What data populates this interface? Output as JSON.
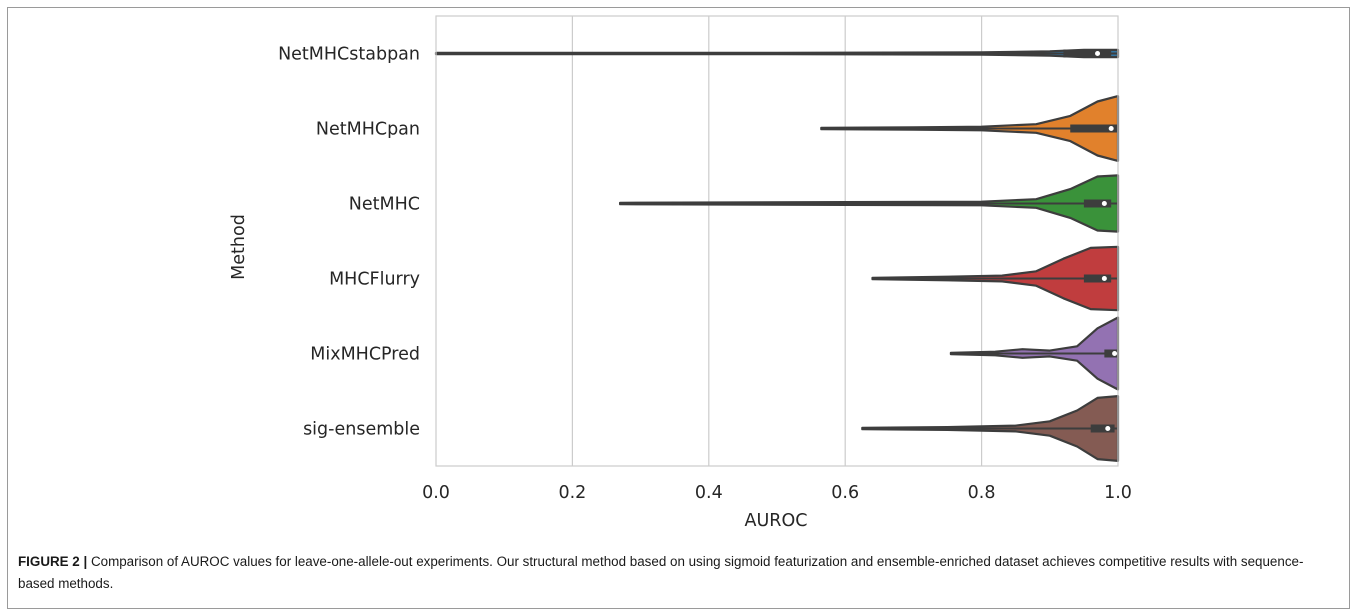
{
  "figure": {
    "caption_label": "FIGURE 2 |",
    "caption_text": " Comparison of AUROC values for leave-one-allele-out experiments. Our structural method based on using sigmoid featurization and ensemble-enriched dataset achieves competitive results with sequence-based methods."
  },
  "chart_data": {
    "type": "violin",
    "orientation": "horizontal",
    "xlabel": "AUROC",
    "ylabel": "Method",
    "xlim": [
      0.0,
      1.0
    ],
    "xticks": [
      "0.0",
      "0.2",
      "0.4",
      "0.6",
      "0.8",
      "1.0"
    ],
    "grid": "vertical",
    "series": [
      {
        "name": "NetMHCstabpan",
        "color": "#3274a1",
        "min": 0.0,
        "q1": 0.92,
        "median": 0.97,
        "q3": 0.99,
        "max": 1.0,
        "density": [
          [
            0.0,
            0.02
          ],
          [
            0.2,
            0.02
          ],
          [
            0.5,
            0.02
          ],
          [
            0.8,
            0.03
          ],
          [
            0.9,
            0.06
          ],
          [
            0.95,
            0.1
          ],
          [
            1.0,
            0.1
          ]
        ]
      },
      {
        "name": "NetMHCpan",
        "color": "#e1812c",
        "min": 0.565,
        "q1": 0.93,
        "median": 0.99,
        "q3": 1.0,
        "max": 1.0,
        "density": [
          [
            0.565,
            0.02
          ],
          [
            0.7,
            0.03
          ],
          [
            0.8,
            0.05
          ],
          [
            0.88,
            0.12
          ],
          [
            0.93,
            0.35
          ],
          [
            0.97,
            0.75
          ],
          [
            1.0,
            0.9
          ]
        ]
      },
      {
        "name": "NetMHC",
        "color": "#3a923a",
        "min": 0.27,
        "q1": 0.95,
        "median": 0.98,
        "q3": 0.99,
        "max": 1.0,
        "density": [
          [
            0.27,
            0.02
          ],
          [
            0.6,
            0.04
          ],
          [
            0.8,
            0.05
          ],
          [
            0.88,
            0.12
          ],
          [
            0.93,
            0.4
          ],
          [
            0.97,
            0.75
          ],
          [
            1.0,
            0.78
          ]
        ]
      },
      {
        "name": "MHCFlurry",
        "color": "#c03d3e",
        "min": 0.64,
        "q1": 0.95,
        "median": 0.98,
        "q3": 0.99,
        "max": 1.0,
        "density": [
          [
            0.64,
            0.02
          ],
          [
            0.75,
            0.05
          ],
          [
            0.83,
            0.08
          ],
          [
            0.88,
            0.2
          ],
          [
            0.92,
            0.55
          ],
          [
            0.96,
            0.85
          ],
          [
            1.0,
            0.88
          ]
        ]
      },
      {
        "name": "MixMHCPred",
        "color": "#9372b2",
        "min": 0.755,
        "q1": 0.98,
        "median": 0.995,
        "q3": 1.0,
        "max": 1.0,
        "density": [
          [
            0.755,
            0.02
          ],
          [
            0.82,
            0.05
          ],
          [
            0.86,
            0.12
          ],
          [
            0.9,
            0.08
          ],
          [
            0.94,
            0.2
          ],
          [
            0.97,
            0.7
          ],
          [
            1.0,
            1.0
          ]
        ]
      },
      {
        "name": "sig-ensemble",
        "color": "#845b53",
        "min": 0.625,
        "q1": 0.96,
        "median": 0.985,
        "q3": 0.995,
        "max": 1.0,
        "density": [
          [
            0.625,
            0.02
          ],
          [
            0.75,
            0.04
          ],
          [
            0.85,
            0.08
          ],
          [
            0.9,
            0.2
          ],
          [
            0.94,
            0.5
          ],
          [
            0.97,
            0.85
          ],
          [
            1.0,
            0.9
          ]
        ]
      }
    ]
  }
}
